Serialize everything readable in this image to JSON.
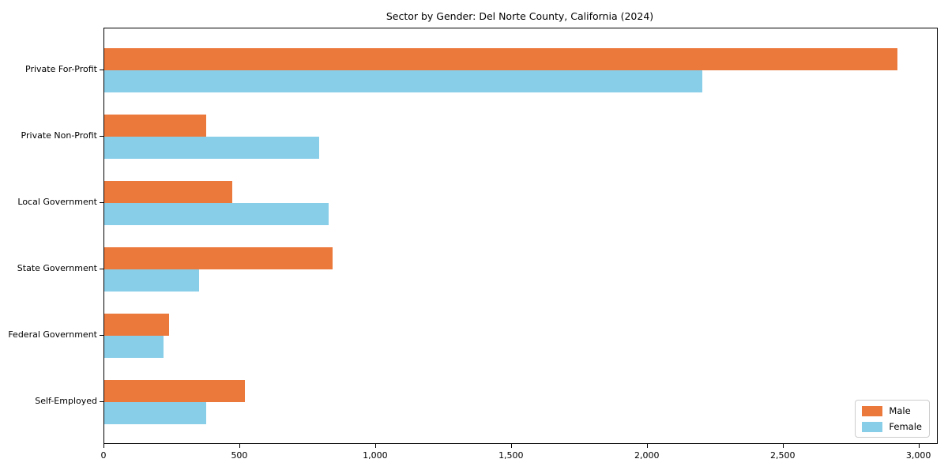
{
  "chart_data": {
    "type": "bar",
    "orientation": "horizontal",
    "title": "Sector by Gender: Del Norte County, California (2024)",
    "categories": [
      "Private For-Profit",
      "Private Non-Profit",
      "Local Government",
      "State Government",
      "Federal Government",
      "Self-Employed"
    ],
    "series": [
      {
        "name": "Male",
        "color": "#EC793C",
        "values": [
          2919,
          375,
          470,
          840,
          237,
          518
        ]
      },
      {
        "name": "Female",
        "color": "#89CEE9",
        "values": [
          2202,
          791,
          825,
          350,
          219,
          376
        ]
      }
    ],
    "xlabel": "",
    "ylabel": "",
    "xlim": [
      0,
      3065
    ],
    "xticks": [
      0,
      500,
      1000,
      1500,
      2000,
      2500,
      3000
    ],
    "xtick_labels": [
      "0",
      "500",
      "1,000",
      "1,500",
      "2,000",
      "2,500",
      "3,000"
    ],
    "grid": false,
    "legend": {
      "position": "lower right",
      "entries": [
        "Male",
        "Female"
      ]
    }
  }
}
